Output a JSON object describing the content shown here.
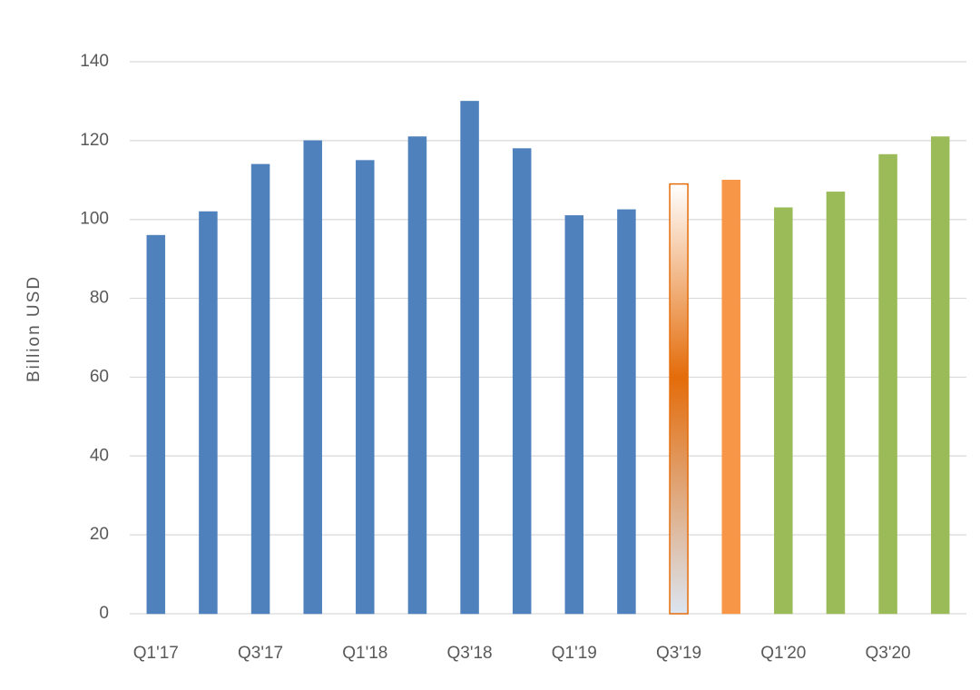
{
  "chart_data": {
    "type": "bar",
    "y_label": "Billion USD",
    "categories": [
      "Q1'17",
      null,
      "Q3'17",
      null,
      "Q1'18",
      null,
      "Q3'18",
      null,
      "Q1'19",
      null,
      "Q3'19",
      null,
      "Q1'20",
      null,
      "Q3'20",
      null
    ],
    "values": [
      96,
      102,
      114,
      120,
      115,
      121,
      130,
      118,
      101,
      102.5,
      109,
      110,
      103,
      107,
      116.5,
      121
    ],
    "colors": [
      "#4f81bd",
      "#4f81bd",
      "#4f81bd",
      "#4f81bd",
      "#4f81bd",
      "#4f81bd",
      "#4f81bd",
      "#4f81bd",
      "#4f81bd",
      "#4f81bd",
      "#e46c0a",
      "#f79646",
      "#9bbb59",
      "#9bbb59",
      "#9bbb59",
      "#9bbb59"
    ],
    "fill_styles": [
      "solid",
      "solid",
      "solid",
      "solid",
      "solid",
      "solid",
      "solid",
      "solid",
      "solid",
      "solid",
      "gradient",
      "solid",
      "solid",
      "solid",
      "solid",
      "solid"
    ],
    "ylim": [
      0,
      140
    ],
    "yticks": [
      0,
      20,
      40,
      60,
      80,
      100,
      120,
      140
    ],
    "grid": true
  }
}
